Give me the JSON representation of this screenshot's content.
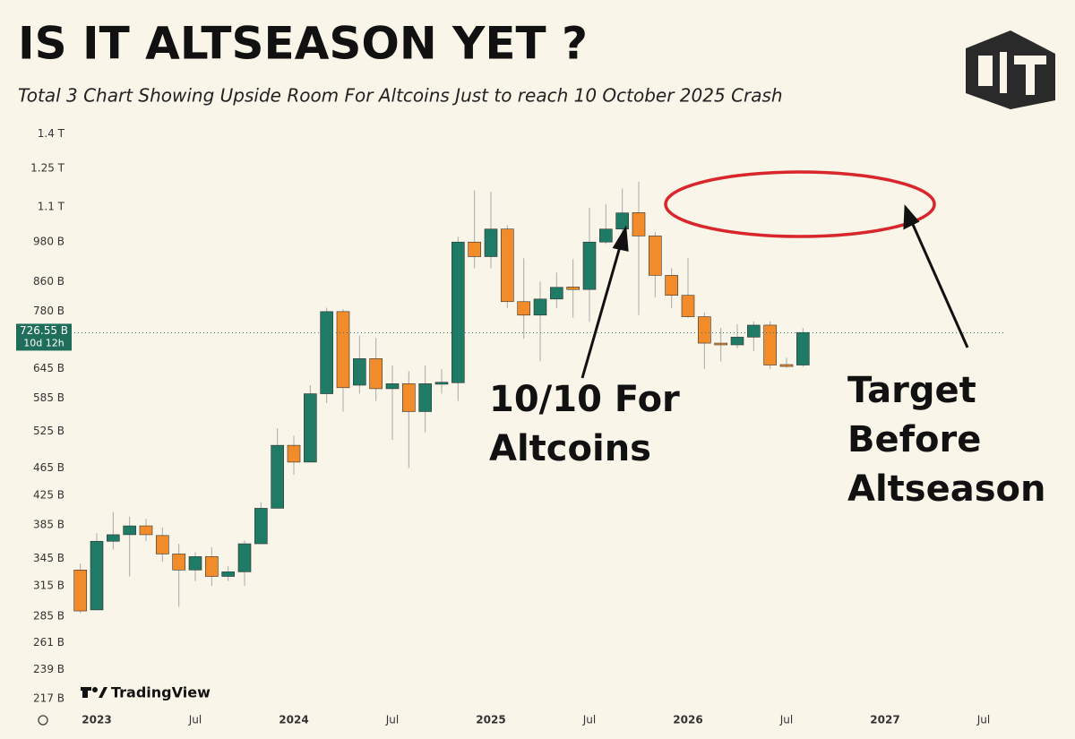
{
  "chart_data": {
    "type": "candlestick",
    "title": "IS IT ALTSEASON YET ?",
    "subtitle": "Total 3 Chart Showing Upside Room For Altcoins Just to reach 10 October 2025 Crash",
    "annotations": [
      [
        "10/10 For",
        "Altcoins"
      ],
      [
        "Target",
        "Before",
        "Altseason"
      ]
    ],
    "watermark": "TradingView",
    "log_scale": true,
    "up_color": "#1f7a66",
    "down_color": "#f28c2a",
    "x": [
      0,
      1,
      2,
      3,
      4,
      5,
      6,
      7,
      8,
      9,
      10,
      11,
      12,
      13,
      14,
      15,
      16,
      17,
      18,
      19,
      20,
      21,
      22,
      23,
      24,
      25,
      26,
      27,
      28,
      29,
      30,
      31,
      32,
      33,
      34,
      35,
      36,
      37,
      38,
      39,
      40,
      41,
      42,
      43,
      44
    ],
    "open": [
      332,
      291,
      365,
      373,
      384,
      372,
      350,
      332,
      347,
      325,
      330,
      362,
      407,
      501,
      474,
      594,
      779,
      611,
      667,
      604,
      614,
      560,
      613,
      616,
      980,
      934,
      1023,
      805,
      770,
      812,
      845,
      838,
      980,
      1023,
      1080,
      1000,
      878,
      822,
      766,
      702,
      698,
      716,
      745,
      654,
      653
    ],
    "high": [
      339,
      375,
      402,
      396,
      393,
      382,
      362,
      352,
      358,
      336,
      366,
      415,
      530,
      517,
      611,
      789,
      785,
      720,
      714,
      652,
      640,
      652,
      644,
      997,
      1162,
      1157,
      1036,
      929,
      860,
      886,
      926,
      1097,
      1111,
      1169,
      1196,
      1013,
      899,
      929,
      777,
      738,
      747,
      754,
      754,
      669,
      738
    ],
    "low": [
      288,
      291,
      355,
      325,
      365,
      341,
      294,
      320,
      315,
      320,
      315,
      362,
      407,
      455,
      474,
      576,
      560,
      594,
      580,
      510,
      465,
      523,
      594,
      580,
      899,
      899,
      788,
      712,
      661,
      788,
      763,
      753,
      974,
      1013,
      770,
      817,
      788,
      763,
      645,
      661,
      690,
      684,
      645,
      647,
      649
    ],
    "close": [
      290,
      365,
      373,
      384,
      373,
      350,
      332,
      347,
      325,
      330,
      362,
      407,
      501,
      474,
      594,
      779,
      606,
      667,
      604,
      614,
      560,
      614,
      617,
      980,
      934,
      1023,
      805,
      770,
      812,
      844,
      838,
      980,
      1023,
      1079,
      1000,
      878,
      822,
      766,
      702,
      698,
      716,
      745,
      653,
      650,
      727
    ],
    "xlim": [
      -0.8,
      56.2
    ],
    "xticks": [
      {
        "value": 1,
        "label": "2023"
      },
      {
        "value": 7,
        "label": "Jul"
      },
      {
        "value": 13,
        "label": "2024"
      },
      {
        "value": 19,
        "label": "Jul"
      },
      {
        "value": 25,
        "label": "2025"
      },
      {
        "value": 31,
        "label": "Jul"
      },
      {
        "value": 37,
        "label": "2026"
      },
      {
        "value": 43,
        "label": "Jul"
      },
      {
        "value": 49,
        "label": "2027"
      },
      {
        "value": 55,
        "label": "Jul"
      }
    ],
    "ylim": [
      212,
      1415
    ],
    "yticks": [
      {
        "value": 1400,
        "label": "1.4 T"
      },
      {
        "value": 1250,
        "label": "1.25 T"
      },
      {
        "value": 1100,
        "label": "1.1 T"
      },
      {
        "value": 980,
        "label": "980 B"
      },
      {
        "value": 860,
        "label": "860 B"
      },
      {
        "value": 780,
        "label": "780 B"
      },
      {
        "value": 645,
        "label": "645 B"
      },
      {
        "value": 585,
        "label": "585 B"
      },
      {
        "value": 525,
        "label": "525 B"
      },
      {
        "value": 465,
        "label": "465 B"
      },
      {
        "value": 425,
        "label": "425 B"
      },
      {
        "value": 385,
        "label": "385 B"
      },
      {
        "value": 345,
        "label": "345 B"
      },
      {
        "value": 315,
        "label": "315 B"
      },
      {
        "value": 285,
        "label": "285 B"
      },
      {
        "value": 261,
        "label": "261 B"
      },
      {
        "value": 239,
        "label": "239 B"
      },
      {
        "value": 217,
        "label": "217 B"
      }
    ],
    "current_price": {
      "value": 726.55,
      "label": "726.55 B",
      "countdown": "10d 12h"
    }
  }
}
